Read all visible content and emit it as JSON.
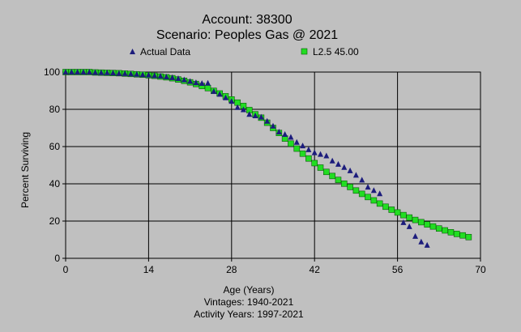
{
  "chart_data": {
    "type": "scatter",
    "title": "Account: 38300",
    "subtitle": "Scenario: Peoples Gas @ 2021",
    "xlabel": "Age (Years)",
    "ylabel": "Percent Surviving",
    "footer_lines": [
      "Vintages: 1940-2021",
      "Activity Years: 1997-2021"
    ],
    "xlim": [
      0,
      70
    ],
    "ylim": [
      0,
      100
    ],
    "xticks": [
      0,
      14,
      28,
      42,
      56,
      70
    ],
    "yticks": [
      0,
      20,
      40,
      60,
      80,
      100
    ],
    "grid": true,
    "legend_position": "top",
    "series": [
      {
        "name": "Actual Data",
        "marker": "triangle",
        "color": "#1c1c7c",
        "x": [
          0,
          1,
          2,
          3,
          4,
          5,
          6,
          7,
          8,
          9,
          10,
          11,
          12,
          13,
          14,
          15,
          16,
          17,
          18,
          19,
          20,
          21,
          22,
          23,
          24,
          25,
          26,
          27,
          28,
          29,
          30,
          31,
          32,
          33,
          34,
          35,
          36,
          37,
          38,
          39,
          40,
          41,
          42,
          43,
          44,
          45,
          46,
          47,
          48,
          49,
          50,
          51,
          52,
          53,
          57,
          58,
          59,
          60,
          61
        ],
        "y": [
          100,
          100,
          100,
          100,
          100,
          99.8,
          99.7,
          99.6,
          99.5,
          99.3,
          99.2,
          99.0,
          98.8,
          98.6,
          98.4,
          98.1,
          97.8,
          97.4,
          97.0,
          96.5,
          95.8,
          95.0,
          94.3,
          93.9,
          94.0,
          89.6,
          88.1,
          86.2,
          84.3,
          81.0,
          79.8,
          77.3,
          76.5,
          75.8,
          73.6,
          71.0,
          67.8,
          66.5,
          65.0,
          62.3,
          60.4,
          58.3,
          56.7,
          55.8,
          55.0,
          52.3,
          50.5,
          48.8,
          47.0,
          44.6,
          42.0,
          38.2,
          36.4,
          34.7,
          19.2,
          17.0,
          11.8,
          8.8,
          7.0
        ]
      },
      {
        "name": "L2.5 45.00",
        "marker": "square",
        "color": "#22dd22",
        "x": [
          0,
          1,
          2,
          3,
          4,
          5,
          6,
          7,
          8,
          9,
          10,
          11,
          12,
          13,
          14,
          15,
          16,
          17,
          18,
          19,
          20,
          21,
          22,
          23,
          24,
          25,
          26,
          27,
          28,
          29,
          30,
          31,
          32,
          33,
          34,
          35,
          36,
          37,
          38,
          39,
          40,
          41,
          42,
          43,
          44,
          45,
          46,
          47,
          48,
          49,
          50,
          51,
          52,
          53,
          54,
          55,
          56,
          57,
          58,
          59,
          60,
          61,
          62,
          63,
          64,
          65,
          66,
          67,
          68
        ],
        "y": [
          100,
          100,
          100,
          100,
          100,
          99.8,
          99.7,
          99.6,
          99.5,
          99.4,
          99.2,
          99.0,
          98.8,
          98.6,
          98.3,
          98.0,
          97.6,
          97.2,
          96.7,
          96.0,
          95.3,
          94.5,
          93.6,
          92.5,
          91.4,
          89.9,
          88.5,
          87.0,
          85.3,
          83.6,
          81.8,
          79.6,
          77.3,
          75.5,
          72.8,
          70.0,
          67.3,
          64.3,
          61.6,
          58.9,
          56.2,
          53.6,
          51.1,
          48.7,
          46.4,
          44.2,
          42.1,
          40.1,
          38.3,
          36.4,
          34.6,
          32.9,
          31.1,
          29.4,
          27.7,
          26.1,
          24.6,
          23.2,
          21.9,
          20.6,
          19.4,
          18.2,
          17.1,
          16.0,
          15.0,
          14.0,
          13.1,
          12.3,
          11.4
        ]
      }
    ]
  }
}
